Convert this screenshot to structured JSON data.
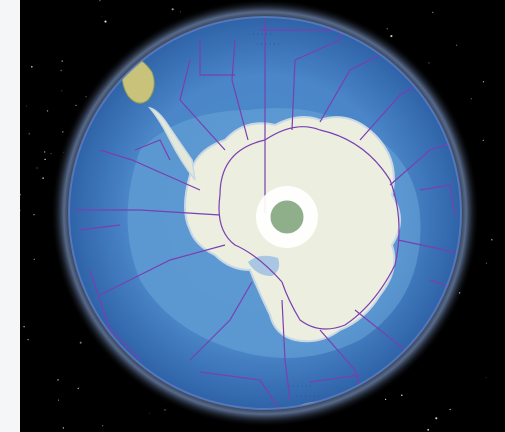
{
  "scene": {
    "view": "polar globe (south pole)",
    "background": "#000000",
    "star_color": "#ffffff",
    "ocean_color": "#4a86c8",
    "ocean_deep_color": "#2f63a8",
    "land_color": "#eceee0",
    "ice_edge_color": "#c9d8e4",
    "boundary_color": "#7a3fb0",
    "atmosphere_glow_color": "#9fc2ff",
    "pole_hole_color": "#ffffff",
    "pole_center_color": "#8fae8a",
    "south_america_color": "#c9c27a"
  },
  "labels": {
    "top_region_annotations": [
      "· · · · · ·",
      "· · · · · ·"
    ],
    "bottom_region_annotations": [
      "· · · · · ·",
      "· · · · · ·"
    ]
  }
}
